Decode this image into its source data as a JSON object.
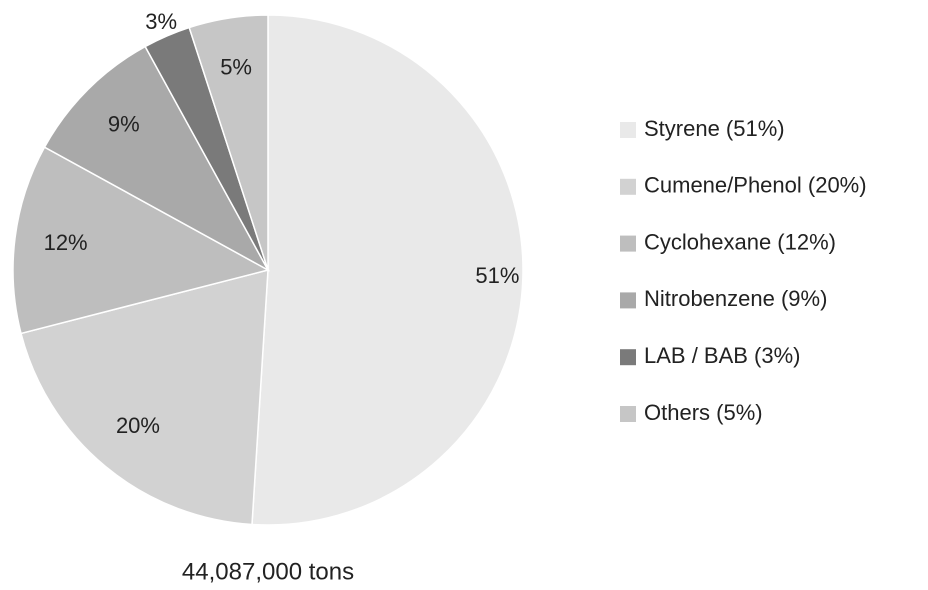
{
  "chart_data": {
    "type": "pie",
    "categories": [
      "Styrene (51%)",
      "Cumene/Phenol (20%)",
      "Cyclohexane (12%)",
      "Nitrobenzene (9%)",
      "LAB / BAB (3%)",
      "Others (5%)"
    ],
    "values": [
      51,
      20,
      12,
      9,
      3,
      5
    ],
    "value_labels": [
      "51%",
      "20%",
      "12%",
      "9%",
      "3%",
      "5%"
    ],
    "colors": [
      "#e9e9e9",
      "#d2d2d2",
      "#bebebe",
      "#a9a9a9",
      "#7a7a7a",
      "#c6c6c6"
    ],
    "annotation": "44,087,000 tons",
    "legend": "right"
  }
}
